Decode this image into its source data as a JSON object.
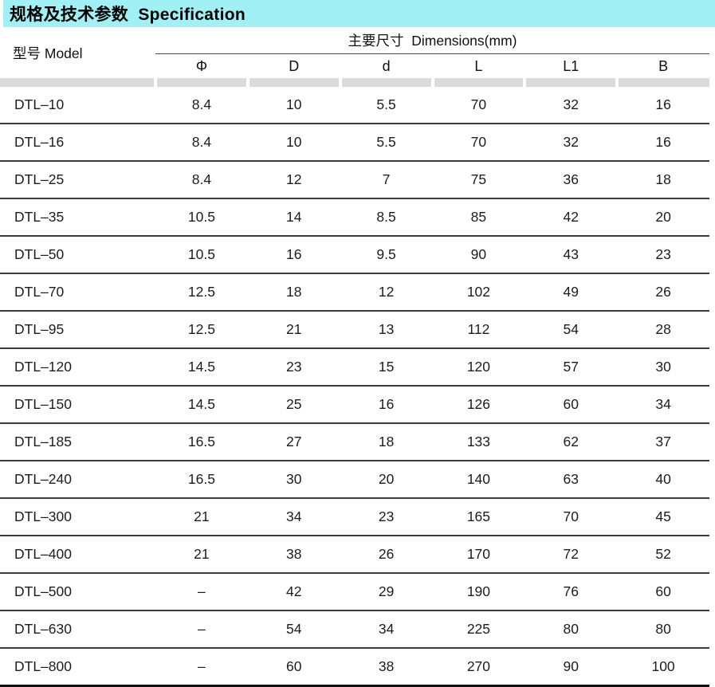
{
  "title": {
    "zh": "规格及技术参数",
    "en": "Specification",
    "full": "规格及技术参数  Specification"
  },
  "table": {
    "model_header": "型号 Model",
    "dims_header": "主要尺寸  Dimensions(mm)",
    "columns": [
      "Φ",
      "D",
      "d",
      "L",
      "L1",
      "B"
    ],
    "rows": [
      {
        "model": "DTL–10",
        "values": [
          "8.4",
          "10",
          "5.5",
          "70",
          "32",
          "16"
        ]
      },
      {
        "model": "DTL–16",
        "values": [
          "8.4",
          "10",
          "5.5",
          "70",
          "32",
          "16"
        ]
      },
      {
        "model": "DTL–25",
        "values": [
          "8.4",
          "12",
          "7",
          "75",
          "36",
          "18"
        ]
      },
      {
        "model": "DTL–35",
        "values": [
          "10.5",
          "14",
          "8.5",
          "85",
          "42",
          "20"
        ]
      },
      {
        "model": "DTL–50",
        "values": [
          "10.5",
          "16",
          "9.5",
          "90",
          "43",
          "23"
        ]
      },
      {
        "model": "DTL–70",
        "values": [
          "12.5",
          "18",
          "12",
          "102",
          "49",
          "26"
        ]
      },
      {
        "model": "DTL–95",
        "values": [
          "12.5",
          "21",
          "13",
          "112",
          "54",
          "28"
        ]
      },
      {
        "model": "DTL–120",
        "values": [
          "14.5",
          "23",
          "15",
          "120",
          "57",
          "30"
        ]
      },
      {
        "model": "DTL–150",
        "values": [
          "14.5",
          "25",
          "16",
          "126",
          "60",
          "34"
        ]
      },
      {
        "model": "DTL–185",
        "values": [
          "16.5",
          "27",
          "18",
          "133",
          "62",
          "37"
        ]
      },
      {
        "model": "DTL–240",
        "values": [
          "16.5",
          "30",
          "20",
          "140",
          "63",
          "40"
        ]
      },
      {
        "model": "DTL–300",
        "values": [
          "21",
          "34",
          "23",
          "165",
          "70",
          "45"
        ]
      },
      {
        "model": "DTL–400",
        "values": [
          "21",
          "38",
          "26",
          "170",
          "72",
          "52"
        ]
      },
      {
        "model": "DTL–500",
        "values": [
          "–",
          "42",
          "29",
          "190",
          "76",
          "60"
        ]
      },
      {
        "model": "DTL–630",
        "values": [
          "–",
          "54",
          "34",
          "225",
          "80",
          "80"
        ]
      },
      {
        "model": "DTL–800",
        "values": [
          "–",
          "60",
          "38",
          "270",
          "90",
          "100"
        ]
      }
    ]
  },
  "colors": {
    "title_bg": "#a0f0f6",
    "strip_bg": "#dbdbdb",
    "row_line": "#3b3b3b",
    "bottom_line": "#101010"
  }
}
